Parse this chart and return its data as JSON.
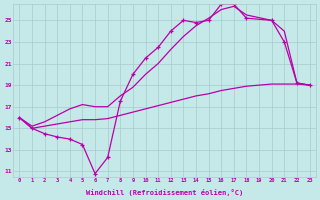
{
  "background_color": "#c5e8e8",
  "grid_color": "#a8cccc",
  "line_color": "#bb00aa",
  "xlabel": "Windchill (Refroidissement éolien,°C)",
  "xlim": [
    -0.5,
    23.5
  ],
  "ylim": [
    10.5,
    26.5
  ],
  "yticks": [
    11,
    13,
    15,
    17,
    19,
    21,
    23,
    25
  ],
  "xticks": [
    0,
    1,
    2,
    3,
    4,
    5,
    6,
    7,
    8,
    9,
    10,
    11,
    12,
    13,
    14,
    15,
    16,
    17,
    18,
    19,
    20,
    21,
    22,
    23
  ],
  "curve1_x": [
    0,
    1,
    2,
    3,
    4,
    5,
    6,
    7,
    8,
    9,
    10,
    11,
    12,
    13,
    14,
    15,
    16,
    17,
    18,
    20,
    21,
    22,
    23
  ],
  "curve1_y": [
    16.0,
    15.0,
    14.5,
    14.2,
    14.0,
    13.5,
    10.8,
    12.3,
    17.5,
    20.0,
    21.5,
    22.5,
    24.0,
    25.0,
    24.8,
    25.0,
    26.5,
    26.5,
    25.2,
    25.0,
    23.0,
    19.2,
    19.0
  ],
  "curve2_x": [
    0,
    1,
    2,
    3,
    4,
    5,
    6,
    7,
    8,
    9,
    10,
    11,
    12,
    13,
    14,
    15,
    16,
    17,
    18,
    20,
    21,
    22,
    23
  ],
  "curve2_y": [
    16.0,
    15.2,
    15.6,
    16.2,
    16.8,
    17.2,
    17.0,
    17.0,
    18.0,
    18.8,
    20.0,
    21.0,
    22.3,
    23.5,
    24.5,
    25.2,
    26.0,
    26.3,
    25.5,
    25.0,
    24.0,
    19.2,
    19.0
  ],
  "curve3_x": [
    0,
    1,
    2,
    3,
    4,
    5,
    6,
    7,
    8,
    9,
    10,
    11,
    12,
    13,
    14,
    15,
    16,
    17,
    18,
    19,
    20,
    21,
    22,
    23
  ],
  "curve3_y": [
    16.0,
    15.0,
    15.2,
    15.4,
    15.6,
    15.8,
    15.8,
    15.9,
    16.2,
    16.5,
    16.8,
    17.1,
    17.4,
    17.7,
    18.0,
    18.2,
    18.5,
    18.7,
    18.9,
    19.0,
    19.1,
    19.1,
    19.1,
    19.0
  ]
}
